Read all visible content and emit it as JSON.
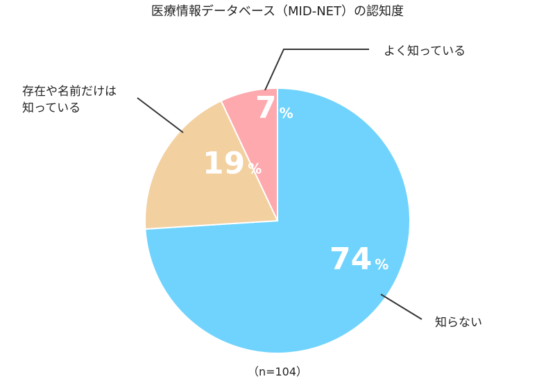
{
  "chart_data": {
    "type": "pie",
    "title": "医療情報データベース（MID-NET）の認知度",
    "note": "（n=104）",
    "slices": [
      {
        "label": "知らない",
        "value": 74,
        "color": "#6fd3fd"
      },
      {
        "label": "存在や名前だけは知っている",
        "value": 19,
        "color": "#f2d0a0"
      },
      {
        "label": "よく知っている",
        "value": 7,
        "color": "#fda9ad"
      }
    ],
    "label_lines": {
      "知らない": [
        "知らない"
      ],
      "存在や名前だけは知っている": [
        "存在や名前だけは",
        "知っている"
      ],
      "よく知っている": [
        "よく知っている"
      ]
    },
    "value_suffix": "%",
    "legend": "none"
  }
}
